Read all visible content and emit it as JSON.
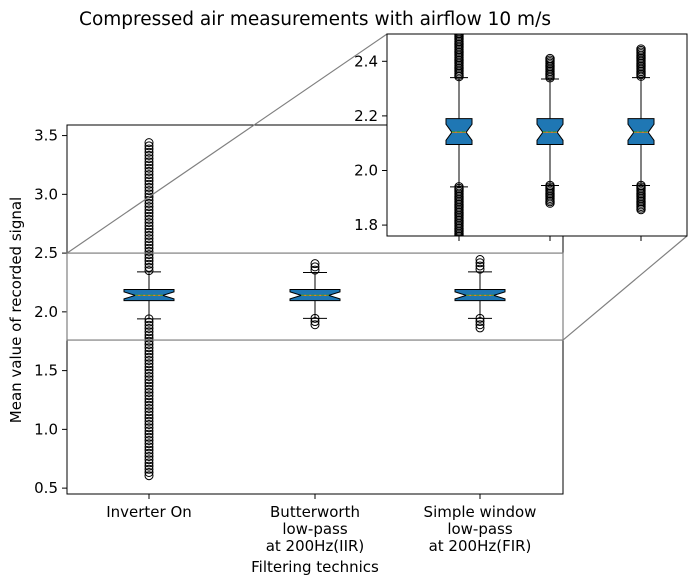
{
  "chart_data": {
    "type": "box",
    "title": "Compressed air measurements with airflow 10 m/s",
    "xlabel": "Filtering technics",
    "ylabel": "Mean value of recorded signal",
    "ylim": [
      0.45,
      3.59
    ],
    "yticks": [
      0.5,
      1.0,
      1.5,
      2.0,
      2.5,
      3.0,
      3.5
    ],
    "colors": {
      "box_fill": "#1f77b4",
      "box_edge": "#000000",
      "median": "#ff7f0e",
      "mean": "#2ca02c",
      "zoom_lines": "#808080"
    },
    "categories": [
      {
        "label_lines": [
          "Inverter On"
        ]
      },
      {
        "label_lines": [
          "Butterworth",
          "low-pass",
          "at 200Hz(IIR)"
        ]
      },
      {
        "label_lines": [
          "Simple window",
          "low-pass",
          "at 200Hz(FIR)"
        ]
      }
    ],
    "boxes": [
      {
        "q1": 2.095,
        "median": 2.14,
        "mean": 2.142,
        "q3": 2.19,
        "whisker_low": 1.94,
        "whisker_high": 2.34,
        "outlier_low_range": [
          0.6,
          1.94
        ],
        "outlier_high_range": [
          2.34,
          3.44
        ]
      },
      {
        "q1": 2.095,
        "median": 2.14,
        "mean": 2.142,
        "q3": 2.19,
        "whisker_low": 1.945,
        "whisker_high": 2.335,
        "outlier_low_range": [
          1.875,
          1.945
        ],
        "outlier_high_range": [
          2.335,
          2.41
        ]
      },
      {
        "q1": 2.095,
        "median": 2.14,
        "mean": 2.142,
        "q3": 2.19,
        "whisker_low": 1.945,
        "whisker_high": 2.34,
        "outlier_low_range": [
          1.855,
          1.945
        ],
        "outlier_high_range": [
          2.34,
          2.445
        ]
      }
    ],
    "inset": {
      "ylim": [
        1.76,
        2.5
      ],
      "yticks": [
        1.8,
        2.0,
        2.2,
        2.4
      ]
    }
  }
}
